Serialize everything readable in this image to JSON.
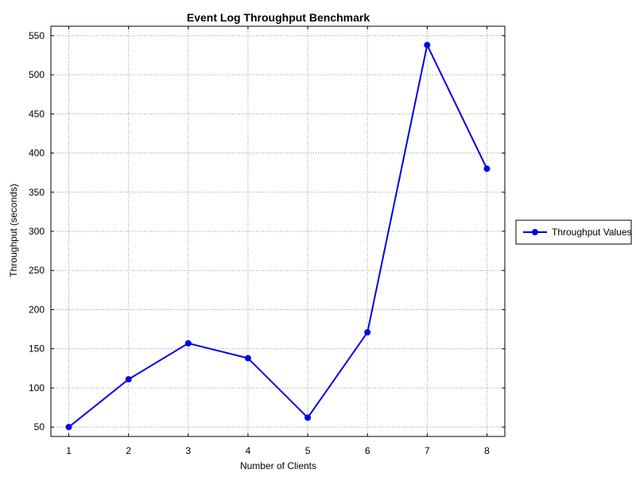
{
  "chart_data": {
    "type": "line",
    "title": "Event Log Throughput Benchmark",
    "xlabel": "Number of Clients",
    "ylabel": "Throughput (seconds)",
    "x": [
      1,
      2,
      3,
      4,
      5,
      6,
      7,
      8
    ],
    "xticks": [
      "1",
      "2",
      "3",
      "4",
      "5",
      "6",
      "7",
      "8"
    ],
    "yticks": [
      "50",
      "100",
      "150",
      "200",
      "250",
      "300",
      "350",
      "400",
      "450",
      "500",
      "550"
    ],
    "xlim": [
      0.7,
      8.3
    ],
    "ylim": [
      38,
      562
    ],
    "grid": true,
    "legend_position": "right",
    "series": [
      {
        "name": "Throughput Values",
        "color": "#0000ee",
        "marker": "circle",
        "values": [
          50,
          111,
          157,
          138,
          62,
          171,
          538,
          380
        ]
      }
    ]
  }
}
